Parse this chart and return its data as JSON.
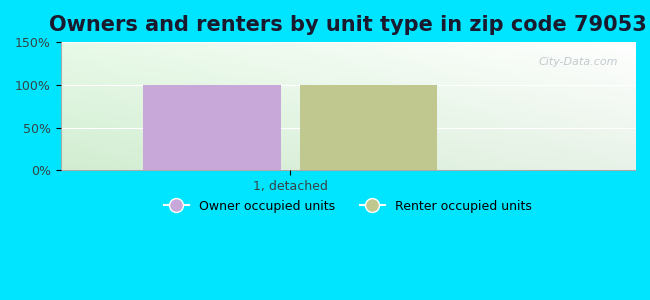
{
  "title": "Owners and renters by unit type in zip code 79053",
  "categories": [
    "1, detached"
  ],
  "owner_values": [
    100
  ],
  "renter_values": [
    100
  ],
  "owner_color": "#c8a8d8",
  "renter_color": "#c0c890",
  "ylim": [
    0,
    150
  ],
  "yticks": [
    0,
    50,
    100,
    150
  ],
  "ytick_labels": [
    "0%",
    "50%",
    "100%",
    "150%"
  ],
  "background_outer": "#00e5ff",
  "legend_owner": "Owner occupied units",
  "legend_renter": "Renter occupied units",
  "watermark": "City-Data.com",
  "bar_width": 0.3,
  "title_fontsize": 15
}
